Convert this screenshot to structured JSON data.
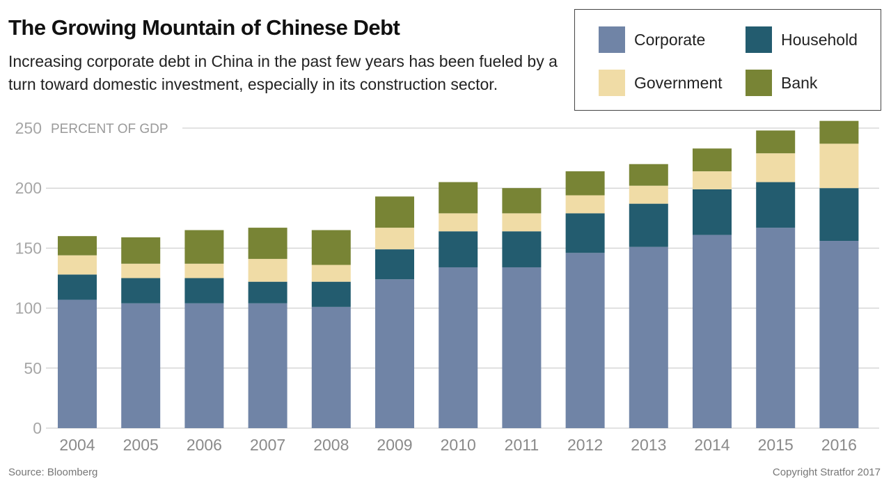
{
  "title": "The Growing Mountain of Chinese Debt",
  "subtitle": "Increasing corporate debt in China in the past few years has been fueled by a turn toward domestic investment, especially in its construction sector.",
  "source": "Source: Bloomberg",
  "copyright": "Copyright Stratfor 2017",
  "chart_data": {
    "type": "bar",
    "stacked": true,
    "axis_title": "PERCENT OF GDP",
    "categories": [
      "2004",
      "2005",
      "2006",
      "2007",
      "2008",
      "2009",
      "2010",
      "2011",
      "2012",
      "2013",
      "2014",
      "2015",
      "2016"
    ],
    "series": [
      {
        "name": "Corporate",
        "color": "#7084a6",
        "values": [
          107,
          104,
          104,
          104,
          101,
          124,
          134,
          134,
          146,
          151,
          161,
          167,
          156
        ]
      },
      {
        "name": "Household",
        "color": "#235c6f",
        "values": [
          21,
          21,
          21,
          18,
          21,
          25,
          30,
          30,
          33,
          36,
          38,
          38,
          44
        ]
      },
      {
        "name": "Government",
        "color": "#f0dca6",
        "values": [
          16,
          12,
          12,
          19,
          14,
          18,
          15,
          15,
          15,
          15,
          15,
          24,
          37
        ]
      },
      {
        "name": "Bank",
        "color": "#788435",
        "values": [
          16,
          22,
          28,
          26,
          29,
          26,
          26,
          21,
          20,
          18,
          19,
          19,
          19
        ]
      }
    ],
    "ylim": [
      0,
      250
    ],
    "yticks": [
      0,
      50,
      100,
      150,
      200,
      250
    ],
    "grid": true,
    "legend_position": "top-right"
  }
}
